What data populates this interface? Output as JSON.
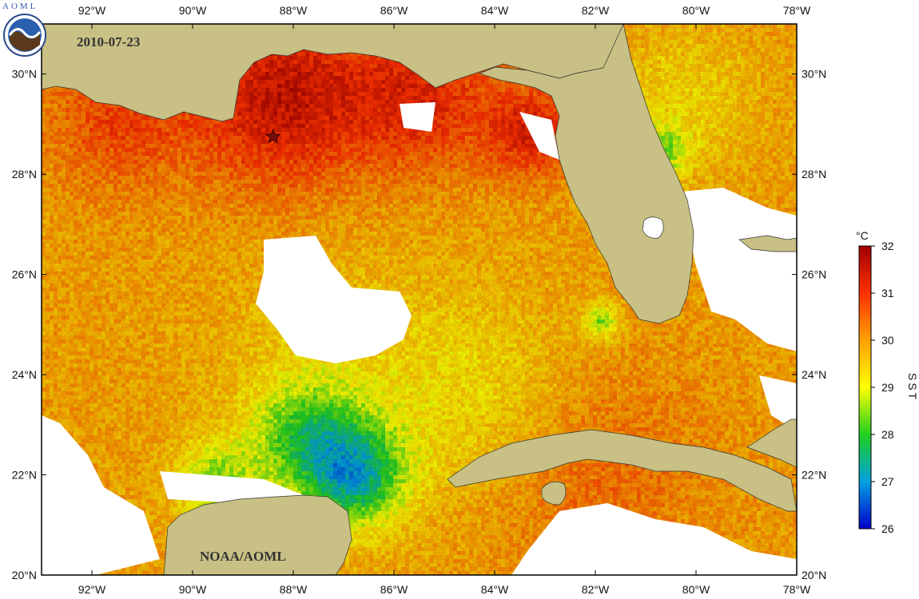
{
  "map": {
    "date_label": "2010-07-23",
    "credit_label": "NOAA/AOML",
    "logo_text": "AOML",
    "extent": {
      "lon_min": -93,
      "lon_max": -78,
      "lat_min": 20,
      "lat_max": 31
    },
    "lon_ticks": [
      -92,
      -90,
      -88,
      -86,
      -84,
      -82,
      -80,
      -78
    ],
    "lat_ticks": [
      20,
      22,
      24,
      26,
      28,
      30
    ],
    "lon_tick_labels": [
      "92°W",
      "90°W",
      "88°W",
      "86°W",
      "84°W",
      "82°W",
      "80°W",
      "78°W"
    ],
    "lat_tick_labels": [
      "20°N",
      "22°N",
      "24°N",
      "26°N",
      "28°N",
      "30°N"
    ],
    "marker": {
      "lon": -88.4,
      "lat": 28.75,
      "label": ""
    },
    "colors": {
      "land": "#c8c084",
      "no_data": "#ffffff",
      "frame": "#000000"
    }
  },
  "colorbar": {
    "unit_label": "°C",
    "variable_label": "SST",
    "min": 26,
    "max": 32,
    "ticks": [
      26,
      27,
      28,
      29,
      30,
      31,
      32
    ],
    "tick_labels": [
      "26",
      "27",
      "28",
      "29",
      "30",
      "31",
      "32"
    ],
    "stops": [
      {
        "value": 26,
        "color": "#0000cc"
      },
      {
        "value": 27,
        "color": "#00a0e0"
      },
      {
        "value": 28,
        "color": "#20d020"
      },
      {
        "value": 29,
        "color": "#ffff00"
      },
      {
        "value": 30,
        "color": "#ffa000"
      },
      {
        "value": 31,
        "color": "#ff3000"
      },
      {
        "value": 32,
        "color": "#a00000"
      }
    ]
  }
}
